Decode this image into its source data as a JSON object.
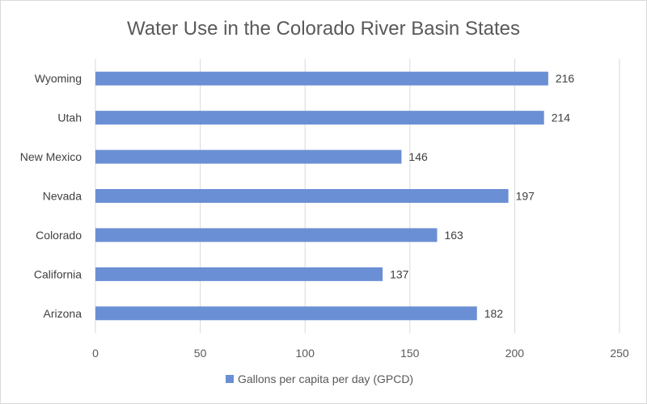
{
  "chart_data": {
    "type": "bar",
    "orientation": "horizontal",
    "title": "Water Use in the Colorado River Basin States",
    "xlabel": "",
    "ylabel": "",
    "categories": [
      "Wyoming",
      "Utah",
      "New Mexico",
      "Nevada",
      "Colorado",
      "California",
      "Arizona"
    ],
    "series": [
      {
        "name": "Gallons per capita per day (GPCD)",
        "values": [
          216,
          214,
          146,
          197,
          163,
          137,
          182
        ],
        "color": "#6b8fd4"
      }
    ],
    "xlim": [
      0,
      250
    ],
    "ticks": [
      0,
      50,
      100,
      150,
      200,
      250
    ],
    "grid": true,
    "legend": "bottom",
    "data_labels": true
  }
}
